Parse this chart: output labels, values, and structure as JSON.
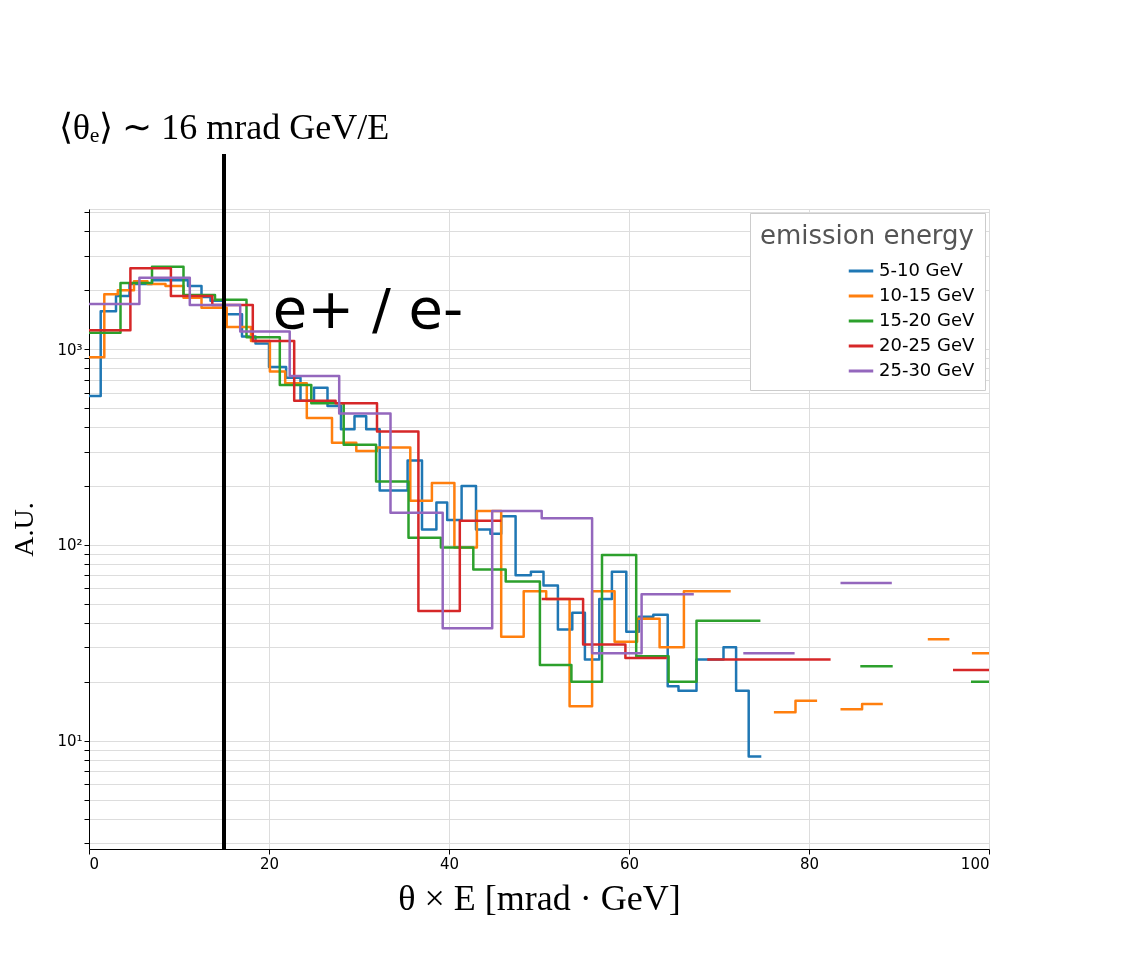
{
  "chart_data": {
    "type": "step",
    "xlabel": "θ × E [mrad · GeV]",
    "ylabel": "A.U.",
    "legend_title": "emission energy",
    "annotations": [
      "e+ / e-"
    ],
    "ref_lines": [
      {
        "axis": "x",
        "value": 15,
        "label": "⟨θₑ⟩ ∼ 16 mrad GeV/E",
        "color": "#000000"
      }
    ],
    "xlim": [
      0,
      100
    ],
    "xticks": [
      0,
      20,
      40,
      60,
      80,
      100
    ],
    "ylim": [
      2.8,
      5200
    ],
    "log": true,
    "yticks": [
      {
        "value": 3,
        "label": null
      },
      {
        "value": 4,
        "label": null
      },
      {
        "value": 5,
        "label": null
      },
      {
        "value": 6,
        "label": null
      },
      {
        "value": 7,
        "label": null
      },
      {
        "value": 8,
        "label": null
      },
      {
        "value": 9,
        "label": null
      },
      {
        "value": 10,
        "label": "10¹"
      },
      {
        "value": 20,
        "label": null
      },
      {
        "value": 30,
        "label": null
      },
      {
        "value": 40,
        "label": null
      },
      {
        "value": 50,
        "label": null
      },
      {
        "value": 60,
        "label": null
      },
      {
        "value": 70,
        "label": null
      },
      {
        "value": 80,
        "label": null
      },
      {
        "value": 90,
        "label": null
      },
      {
        "value": 100,
        "label": "10²"
      },
      {
        "value": 200,
        "label": null
      },
      {
        "value": 300,
        "label": null
      },
      {
        "value": 400,
        "label": null
      },
      {
        "value": 500,
        "label": null
      },
      {
        "value": 600,
        "label": null
      },
      {
        "value": 700,
        "label": null
      },
      {
        "value": 800,
        "label": null
      },
      {
        "value": 900,
        "label": null
      },
      {
        "value": 1000,
        "label": "10³"
      },
      {
        "value": 2000,
        "label": null
      },
      {
        "value": 3000,
        "label": null
      },
      {
        "value": 4000,
        "label": null
      },
      {
        "value": 5000,
        "label": null
      }
    ],
    "grid": true,
    "legend": "top right",
    "series": [
      {
        "name": "5-10 GeV",
        "color": "#1f77b4",
        "x": [
          0,
          1.3,
          3,
          4.5,
          7,
          11,
          12.5,
          13.5,
          15,
          17,
          18.5,
          20,
          21.9,
          23.5,
          25,
          26.5,
          28,
          29.5,
          30.8,
          32.3,
          35.4,
          37,
          38.6,
          39.8,
          41.4,
          43,
          44.6,
          45.8,
          47.4,
          49.1,
          50.5,
          52.1,
          53.7,
          55.1,
          56.7,
          58.1,
          59.7,
          61.1,
          62.7,
          64.3,
          65.5,
          67.5,
          70.5,
          71.9,
          73.3,
          74.7
        ],
        "values": [
          576,
          1560,
          1870,
          2150,
          2250,
          2100,
          1850,
          1770,
          1510,
          1160,
          1070,
          810,
          715,
          545,
          635,
          512,
          390,
          455,
          390,
          190,
          270,
          120,
          165,
          134,
          200,
          120,
          114,
          140,
          70,
          73,
          62,
          37,
          45,
          26,
          53,
          73,
          36,
          43,
          44,
          19,
          18,
          26,
          30,
          18,
          8.3,
          8.3
        ]
      },
      {
        "name": "10-15 GeV",
        "color": "#ff7f0e",
        "x": [
          0,
          1.7,
          3.2,
          5,
          6.5,
          8.5,
          10.5,
          12.5,
          15.3,
          18,
          20.1,
          21.8,
          24.2,
          27,
          29.7,
          32,
          35.7,
          38.1,
          40.6,
          43.1,
          45.8,
          48.3,
          50.8,
          53.4,
          55.9,
          58.4,
          60.9,
          63.4,
          66.1,
          71.3,
          76.1,
          78.5,
          80.9,
          83.5,
          85.9,
          88.2,
          93.2,
          95.6,
          98.1,
          100
        ],
        "values": [
          910,
          1910,
          2000,
          2220,
          2150,
          2100,
          1830,
          1630,
          1300,
          1100,
          770,
          670,
          445,
          333,
          302,
          315,
          168,
          207,
          97,
          149,
          34,
          58,
          53,
          15,
          58,
          32,
          42,
          30,
          58,
          null,
          14,
          16,
          null,
          14.5,
          15.4,
          null,
          33,
          null,
          28,
          28
        ]
      },
      {
        "name": "15-20 GeV",
        "color": "#2ca02c",
        "x": [
          0,
          3.5,
          7,
          10.5,
          14,
          17.5,
          21.2,
          24.7,
          28.3,
          31.9,
          35.5,
          39.1,
          42.7,
          46.3,
          50.1,
          53.6,
          57,
          60.8,
          64.4,
          67.5,
          74.6,
          85.7,
          89.3,
          98,
          100
        ],
        "values": [
          1215,
          2180,
          2640,
          1890,
          1790,
          1150,
          656,
          529,
          325,
          211,
          109,
          97,
          75,
          65,
          24.4,
          20,
          89,
          27,
          20,
          41,
          null,
          24,
          null,
          20,
          20
        ]
      },
      {
        "name": "20-25 GeV",
        "color": "#d62728",
        "x": [
          0,
          4.6,
          9.1,
          13.7,
          18.2,
          22.8,
          27.4,
          32,
          36.6,
          41.2,
          45.8,
          50.3,
          54.9,
          59.6,
          64.2,
          68.7,
          82.4,
          96,
          100
        ],
        "values": [
          1250,
          2590,
          1870,
          1680,
          1100,
          545,
          530,
          380,
          46,
          133,
          null,
          53,
          31,
          26.5,
          null,
          26,
          null,
          23,
          23
        ]
      },
      {
        "name": "25-30 GeV",
        "color": "#9467bd",
        "x": [
          0,
          5.6,
          11.2,
          16.8,
          22.3,
          27.8,
          33.5,
          39.3,
          44.8,
          50.3,
          55.9,
          61.4,
          67.2,
          72.7,
          78.4,
          83.5,
          89.2
        ],
        "values": [
          1700,
          2320,
          1680,
          1230,
          730,
          470,
          146,
          37.5,
          149,
          137,
          28,
          56,
          null,
          28,
          null,
          64,
          64
        ]
      }
    ]
  }
}
